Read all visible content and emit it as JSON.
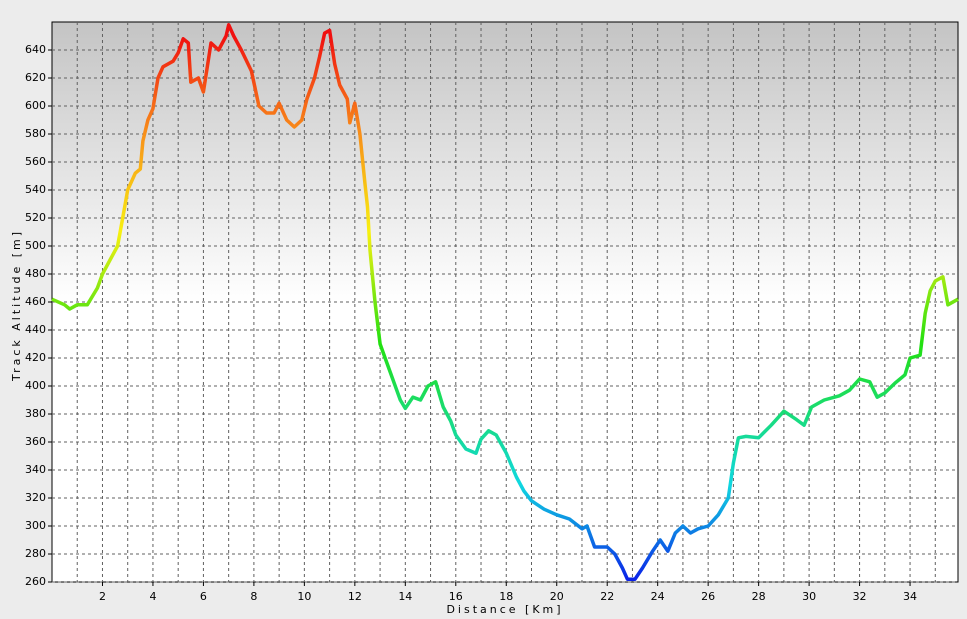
{
  "chart_data": {
    "type": "line",
    "xlabel": "Distance [Km]",
    "ylabel": "Track Altitude [m]",
    "x": [
      0,
      0.5,
      0.7,
      1,
      1.4,
      1.8,
      2,
      2.3,
      2.6,
      2.8,
      3,
      3.3,
      3.5,
      3.6,
      3.8,
      4,
      4.2,
      4.4,
      4.8,
      5,
      5.2,
      5.4,
      5.5,
      5.8,
      6,
      6.3,
      6.6,
      6.9,
      7,
      7.2,
      7.5,
      7.9,
      8.2,
      8.5,
      8.8,
      9,
      9.3,
      9.6,
      9.9,
      10.1,
      10.4,
      10.6,
      10.8,
      11,
      11.2,
      11.4,
      11.7,
      11.8,
      12,
      12.2,
      12.4,
      12.5,
      12.6,
      12.8,
      13,
      13.2,
      13.5,
      13.8,
      14,
      14.3,
      14.6,
      14.9,
      15.2,
      15.5,
      15.8,
      16,
      16.4,
      16.8,
      17,
      17.3,
      17.6,
      18,
      18.4,
      18.7,
      19,
      19.5,
      20,
      20.5,
      21,
      21.2,
      21.5,
      22,
      22.3,
      22.6,
      22.8,
      23.1,
      23.4,
      23.8,
      24.1,
      24.4,
      24.7,
      25,
      25.3,
      25.6,
      26,
      26.4,
      26.8,
      27,
      27.2,
      27.5,
      28,
      28.5,
      29,
      29.5,
      29.8,
      30.1,
      30.6,
      31.2,
      31.6,
      32,
      32.4,
      32.7,
      33,
      33.4,
      33.8,
      34,
      34.4,
      34.6,
      34.8,
      35,
      35.3,
      35.5,
      35.9
    ],
    "series": [
      {
        "values": [
          462,
          458,
          455,
          458,
          458,
          470,
          480,
          490,
          500,
          520,
          540,
          552,
          555,
          575,
          590,
          598,
          620,
          628,
          632,
          638,
          648,
          645,
          617,
          620,
          610,
          645,
          640,
          650,
          658,
          650,
          640,
          625,
          600,
          595,
          595,
          602,
          590,
          585,
          590,
          605,
          620,
          635,
          652,
          654,
          630,
          615,
          605,
          588,
          602,
          580,
          545,
          528,
          497,
          460,
          430,
          420,
          405,
          390,
          384,
          392,
          390,
          400,
          403,
          385,
          375,
          365,
          355,
          352,
          362,
          368,
          365,
          352,
          335,
          325,
          318,
          312,
          308,
          305,
          298,
          300,
          285,
          285,
          280,
          270,
          262,
          262,
          270,
          282,
          290,
          282,
          295,
          300,
          295,
          298,
          300,
          308,
          320,
          345,
          363,
          364,
          363,
          372,
          382,
          376,
          372,
          385,
          390,
          393,
          397,
          405,
          403,
          392,
          395,
          402,
          408,
          420,
          422,
          452,
          468,
          475,
          478,
          458,
          462
        ]
      }
    ],
    "color_stops": [
      {
        "value": 260,
        "color": "#0a1ee8"
      },
      {
        "value": 330,
        "color": "#10d8e0"
      },
      {
        "value": 430,
        "color": "#22e010"
      },
      {
        "value": 510,
        "color": "#f8f010"
      },
      {
        "value": 580,
        "color": "#f8901a"
      },
      {
        "value": 650,
        "color": "#f01010"
      }
    ],
    "xlim": [
      0,
      35.9
    ],
    "ylim": [
      260,
      660
    ],
    "xticks": [
      2,
      4,
      6,
      8,
      10,
      12,
      14,
      16,
      18,
      20,
      22,
      24,
      26,
      28,
      30,
      32,
      34
    ],
    "xminorticks": [
      1,
      3,
      5,
      7,
      9,
      11,
      13,
      15,
      17,
      19,
      21,
      23,
      25,
      27,
      29,
      31,
      33,
      35
    ],
    "yticks": [
      260,
      280,
      300,
      320,
      340,
      360,
      380,
      400,
      420,
      440,
      460,
      480,
      500,
      520,
      540,
      560,
      580,
      600,
      620,
      640
    ],
    "grid": true
  }
}
